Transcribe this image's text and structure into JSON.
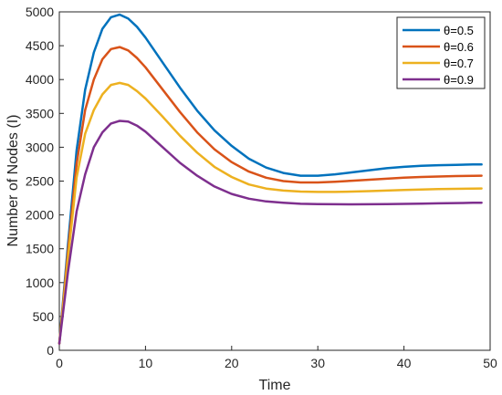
{
  "chart_data": {
    "type": "line",
    "title": "",
    "xlabel": "Time",
    "ylabel": "Number of Nodes (I)",
    "xlim": [
      0,
      50
    ],
    "ylim": [
      0,
      5000
    ],
    "xticks": [
      0,
      10,
      20,
      30,
      40,
      50
    ],
    "yticks": [
      0,
      500,
      1000,
      1500,
      2000,
      2500,
      3000,
      3500,
      4000,
      4500,
      5000
    ],
    "grid": false,
    "legend_position": "top-right",
    "series": [
      {
        "name": "θ=0.5",
        "color": "#0072BD",
        "x": [
          0,
          1,
          2,
          3,
          4,
          5,
          6,
          7,
          8,
          9,
          10,
          12,
          14,
          16,
          18,
          20,
          22,
          24,
          26,
          28,
          30,
          32,
          34,
          36,
          38,
          40,
          42,
          44,
          46,
          48,
          49
        ],
        "y": [
          100,
          1550,
          2950,
          3850,
          4400,
          4750,
          4920,
          4960,
          4900,
          4780,
          4620,
          4250,
          3880,
          3540,
          3250,
          3020,
          2830,
          2700,
          2620,
          2580,
          2580,
          2600,
          2630,
          2660,
          2690,
          2710,
          2725,
          2735,
          2740,
          2745,
          2745
        ]
      },
      {
        "name": "θ=0.6",
        "color": "#D95319",
        "x": [
          0,
          1,
          2,
          3,
          4,
          5,
          6,
          7,
          8,
          9,
          10,
          12,
          14,
          16,
          18,
          20,
          22,
          24,
          26,
          28,
          30,
          32,
          34,
          36,
          38,
          40,
          42,
          44,
          46,
          48,
          49
        ],
        "y": [
          100,
          1450,
          2750,
          3550,
          4000,
          4300,
          4450,
          4480,
          4430,
          4320,
          4180,
          3850,
          3520,
          3220,
          2970,
          2780,
          2640,
          2550,
          2500,
          2480,
          2480,
          2490,
          2505,
          2520,
          2535,
          2550,
          2560,
          2568,
          2574,
          2578,
          2580
        ]
      },
      {
        "name": "θ=0.7",
        "color": "#EDB120",
        "x": [
          0,
          1,
          2,
          3,
          4,
          5,
          6,
          7,
          8,
          9,
          10,
          12,
          14,
          16,
          18,
          20,
          22,
          24,
          26,
          28,
          30,
          32,
          34,
          36,
          38,
          40,
          42,
          44,
          46,
          48,
          49
        ],
        "y": [
          100,
          1350,
          2550,
          3200,
          3550,
          3780,
          3920,
          3950,
          3920,
          3830,
          3720,
          3450,
          3170,
          2920,
          2710,
          2560,
          2450,
          2390,
          2360,
          2345,
          2340,
          2340,
          2345,
          2352,
          2360,
          2368,
          2375,
          2381,
          2386,
          2390,
          2391
        ]
      },
      {
        "name": "θ=0.9",
        "color": "#7E2F8E",
        "x": [
          0,
          1,
          2,
          3,
          4,
          5,
          6,
          7,
          8,
          9,
          10,
          12,
          14,
          16,
          18,
          20,
          22,
          24,
          26,
          28,
          30,
          32,
          34,
          36,
          38,
          40,
          42,
          44,
          46,
          48,
          49
        ],
        "y": [
          100,
          1150,
          2050,
          2600,
          3000,
          3220,
          3350,
          3390,
          3380,
          3320,
          3230,
          3000,
          2770,
          2580,
          2420,
          2310,
          2240,
          2200,
          2180,
          2165,
          2160,
          2158,
          2157,
          2158,
          2160,
          2163,
          2167,
          2171,
          2175,
          2179,
          2180
        ]
      }
    ]
  }
}
